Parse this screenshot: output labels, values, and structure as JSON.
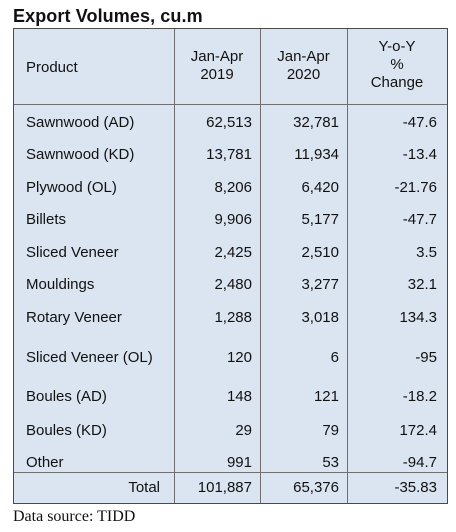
{
  "title": "Export Volumes, cu.m",
  "table": {
    "headers": {
      "product": "Product",
      "col_2019": [
        "Jan-Apr",
        "2019"
      ],
      "col_2020": [
        "Jan-Apr",
        "2020"
      ],
      "col_change": [
        "Y-o-Y",
        "%",
        "Change"
      ]
    },
    "rows": [
      {
        "product": "Sawnwood (AD)",
        "v2019": "62,513",
        "v2020": "32,781",
        "change": "-47.6"
      },
      {
        "product": "Sawnwood (KD)",
        "v2019": "13,781",
        "v2020": "11,934",
        "change": "-13.4"
      },
      {
        "product": "Plywood (OL)",
        "v2019": "8,206",
        "v2020": "6,420",
        "change": "-21.76"
      },
      {
        "product": "Billets",
        "v2019": "9,906",
        "v2020": "5,177",
        "change": "-47.7"
      },
      {
        "product": "Sliced Veneer",
        "v2019": "2,425",
        "v2020": "2,510",
        "change": "3.5"
      },
      {
        "product": "Mouldings",
        "v2019": "2,480",
        "v2020": "3,277",
        "change": "32.1"
      },
      {
        "product": "Rotary Veneer",
        "v2019": "1,288",
        "v2020": "3,018",
        "change": "134.3"
      },
      {
        "product": "Sliced Veneer (OL)",
        "v2019": "120",
        "v2020": "6",
        "change": "-95"
      },
      {
        "product": "Boules (AD)",
        "v2019": "148",
        "v2020": "121",
        "change": "-18.2"
      },
      {
        "product": "Boules (KD)",
        "v2019": "29",
        "v2020": "79",
        "change": "172.4"
      },
      {
        "product": "Other",
        "v2019": "991",
        "v2020": "53",
        "change": "-94.7"
      }
    ],
    "total": {
      "label": "Total",
      "v2019": "101,887",
      "v2020": "65,376",
      "change": "-35.83"
    }
  },
  "footer": "Data source: TIDD"
}
